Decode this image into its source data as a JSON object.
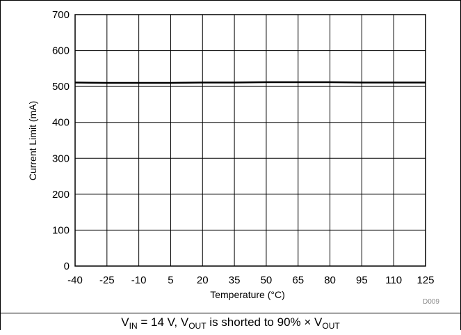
{
  "chart_data": {
    "type": "line",
    "title": "",
    "xlabel": "Temperature (°C)",
    "ylabel": "Current Limit (mA)",
    "x_ticks": [
      "-40",
      "-25",
      "-10",
      "5",
      "20",
      "35",
      "50",
      "65",
      "80",
      "95",
      "110",
      "125"
    ],
    "y_ticks": [
      "0",
      "100",
      "200",
      "300",
      "400",
      "500",
      "600",
      "700"
    ],
    "xlim": [
      -40,
      125
    ],
    "ylim": [
      0,
      700
    ],
    "grid": true,
    "series": [
      {
        "x": [
          -40,
          -25,
          -10,
          5,
          20,
          35,
          50,
          65,
          80,
          95,
          110,
          125
        ],
        "y": [
          511,
          510,
          510,
          510,
          511,
          511,
          512,
          512,
          512,
          511,
          511,
          511
        ]
      }
    ]
  },
  "caption": {
    "v_in_label": "V",
    "v_in_sub": "IN",
    "mid_text": " = 14 V, V",
    "v_out_sub": "OUT",
    "tail_text": " is shorted to 90% × V",
    "v_out_sub2": "OUT"
  },
  "doc_id": "D009",
  "colors": {
    "line": "#000000",
    "grid": "#000000",
    "background": "#ffffff"
  }
}
